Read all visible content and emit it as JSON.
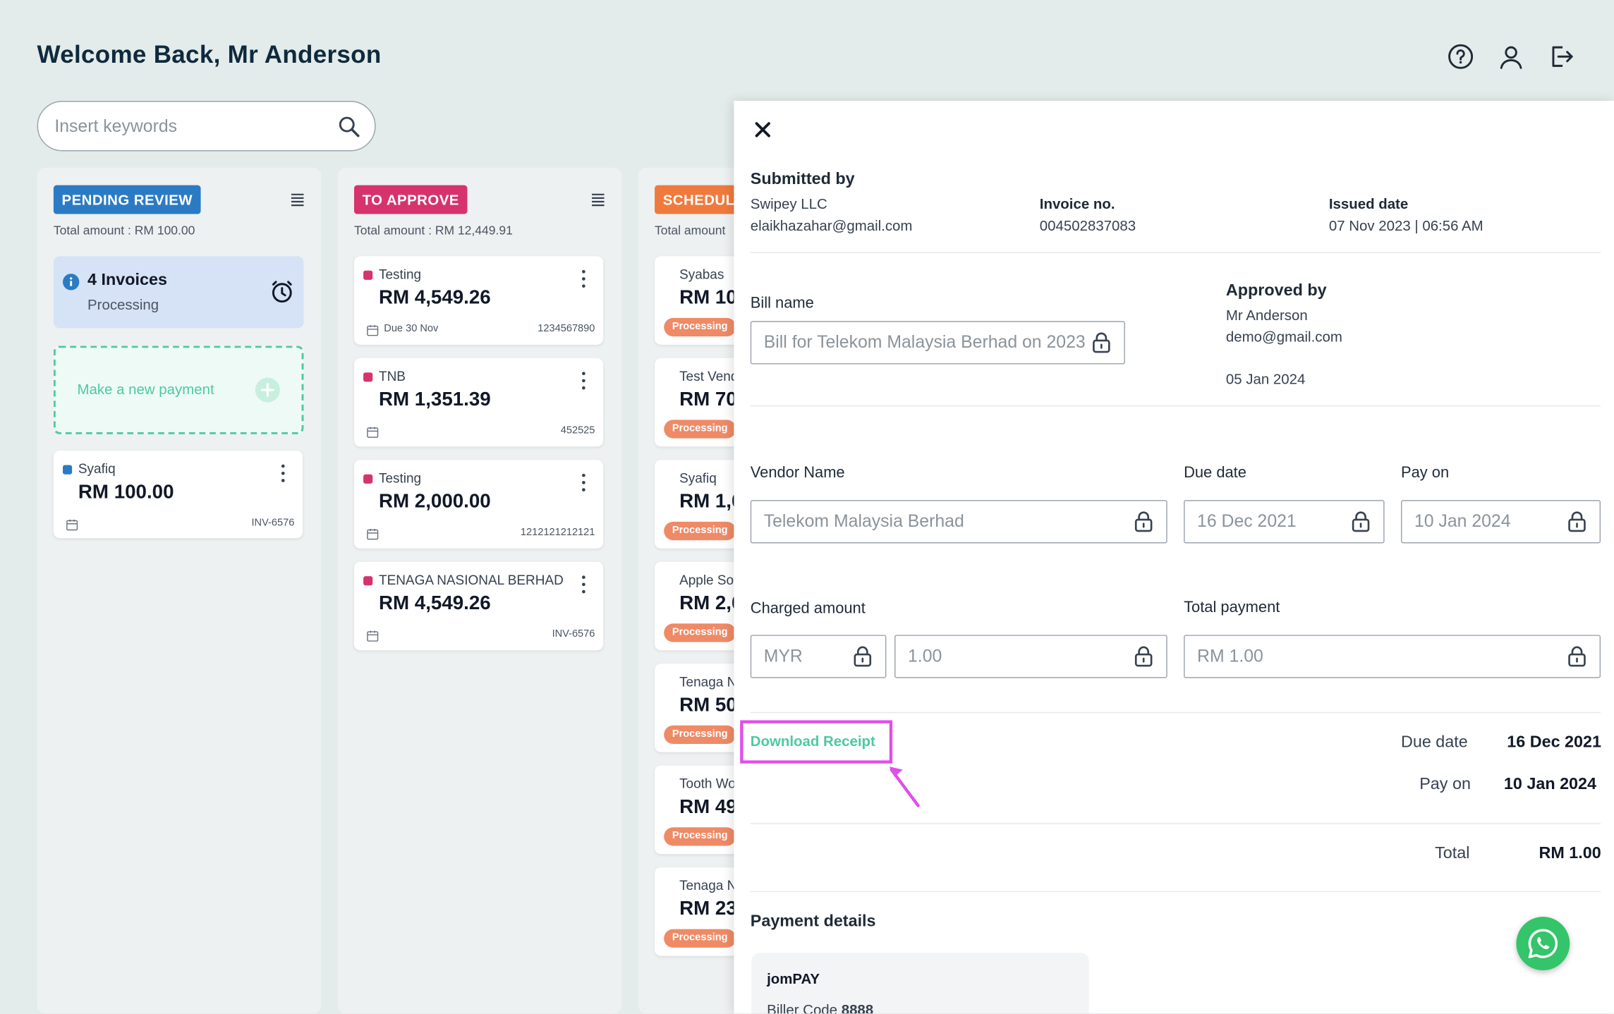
{
  "header": {
    "title": "Welcome Back, Mr Anderson",
    "icons": [
      "help-icon",
      "user-icon",
      "logout-icon"
    ]
  },
  "search": {
    "placeholder": "Insert keywords",
    "value": ""
  },
  "columns": [
    {
      "tag": "PENDING REVIEW",
      "color": "#2b7bc4",
      "total": "Total amount : RM 100.00",
      "summary": {
        "count": "4 Invoices",
        "status": "Processing"
      },
      "new_payment": "Make a new payment",
      "cards": [
        {
          "vendor": "Syafiq",
          "amount": "RM 100.00",
          "due": "",
          "ref": "INV-6576",
          "dot": "#2b7bc4"
        }
      ]
    },
    {
      "tag": "TO APPROVE",
      "color": "#d6336c",
      "total": "Total amount : RM 12,449.91",
      "cards": [
        {
          "vendor": "Testing",
          "amount": "RM 4,549.26",
          "due": "Due 30 Nov",
          "ref": "1234567890",
          "dot": "#d6336c"
        },
        {
          "vendor": "TNB",
          "amount": "RM 1,351.39",
          "due": "",
          "ref": "452525",
          "dot": "#d6336c"
        },
        {
          "vendor": "Testing",
          "amount": "RM 2,000.00",
          "due": "",
          "ref": "1212121212121",
          "dot": "#d6336c"
        },
        {
          "vendor": "TENAGA NASIONAL BERHAD",
          "amount": "RM 4,549.26",
          "due": "",
          "ref": "INV-6576",
          "dot": "#d6336c"
        }
      ]
    },
    {
      "tag": "SCHEDULED",
      "color": "#f07a3e",
      "total": "Total amount",
      "cards": [
        {
          "vendor": "Syabas",
          "amount": "RM 10",
          "badge": "Processing"
        },
        {
          "vendor": "Test Vend",
          "amount": "RM 70",
          "badge": "Processing"
        },
        {
          "vendor": "Syafiq",
          "amount": "RM 1,0",
          "badge": "Processing"
        },
        {
          "vendor": "Apple So",
          "amount": "RM 2,0",
          "badge": "Processing"
        },
        {
          "vendor": "Tenaga N",
          "amount": "RM 50",
          "badge": "Processing"
        },
        {
          "vendor": "Tooth Wo",
          "amount": "RM 49",
          "badge": "Processing"
        },
        {
          "vendor": "Tenaga N",
          "amount": "RM 23",
          "badge": "Processing"
        }
      ]
    }
  ],
  "panel": {
    "submitted_by_label": "Submitted by",
    "submitted_by_name": "Swipey LLC",
    "submitted_by_email": "elaikhazahar@gmail.com",
    "invoice_no_label": "Invoice no.",
    "invoice_no": "004502837083",
    "issued_date_label": "Issued date",
    "issued_date": "07 Nov 2023 | 06:56 AM",
    "bill_name_label": "Bill name",
    "bill_name_value": "Bill for Telekom Malaysia Berhad on 2023",
    "approved_by_label": "Approved by",
    "approved_by_name": "Mr Anderson",
    "approved_by_email": "demo@gmail.com",
    "approved_date": "05 Jan 2024",
    "vendor_name_label": "Vendor Name",
    "vendor_name_value": "Telekom Malaysia Berhad",
    "due_date_label": "Due date",
    "due_date_value": "16 Dec 2021",
    "pay_on_label": "Pay on",
    "pay_on_value": "10 Jan 2024",
    "charged_amount_label": "Charged amount",
    "currency_value": "MYR",
    "charged_amount_value": "1.00",
    "total_payment_label": "Total payment",
    "total_payment_value": "RM 1.00",
    "download_receipt": "Download Receipt",
    "summary": {
      "due_date_label": "Due date",
      "due_date": "16 Dec 2021",
      "pay_on_label": "Pay on",
      "pay_on": "10 Jan 2024",
      "total_label": "Total",
      "total": "RM 1.00"
    },
    "payment_details_label": "Payment details",
    "payment_method": "jomPAY",
    "biller_code_label": "Biller Code",
    "biller_code": "8888"
  }
}
